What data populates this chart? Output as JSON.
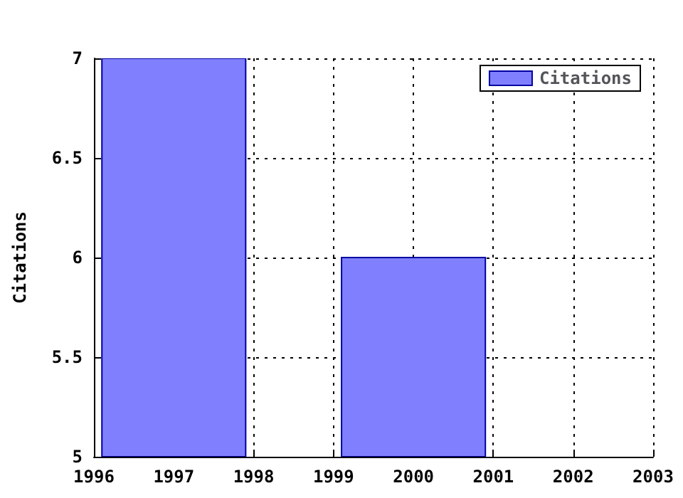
{
  "chart_data": {
    "type": "bar",
    "x": [
      1997,
      2000
    ],
    "ylabel": "Citations",
    "series": [
      {
        "name": "Citations",
        "color": "#8080ff",
        "values": [
          7,
          6
        ]
      }
    ],
    "xlim": [
      1996,
      2003
    ],
    "xticks": [
      1996,
      1997,
      1998,
      1999,
      2000,
      2001,
      2002,
      2003
    ],
    "ylim": [
      5,
      7
    ],
    "yticks": [
      5,
      5.5,
      6,
      6.5,
      7
    ],
    "grid": true,
    "legend": "top right"
  }
}
